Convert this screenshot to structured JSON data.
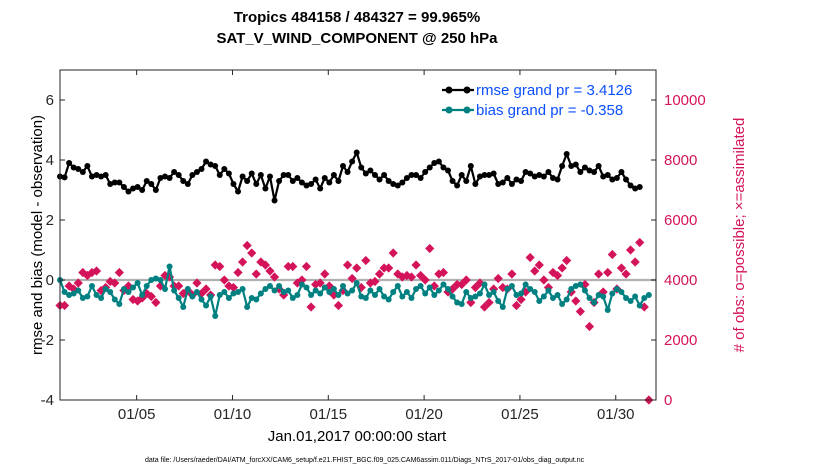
{
  "chart_data": {
    "type": "line",
    "title": "Tropics 484158 / 484327 = 99.965%",
    "subtitle": "SAT_V_WIND_COMPONENT @ 250 hPa",
    "xlabel": "Jan.01,2017 00:00:00 start",
    "ylabel_left": "rmse and bias (model - observation)",
    "ylabel_right": "# of obs: o=possible; ×=assimilated",
    "footer": "data file: /Users/raeder/DAI/ATM_forcXX/CAM6_setup/f.e21.FHIST_BGC.f09_025.CAM6assim.011/Diags_NTrS_2017-01/obs_diag_output.nc",
    "xlim": [
      1,
      32.1
    ],
    "ylim_left": [
      -4,
      7
    ],
    "ylim_right": [
      0,
      11000
    ],
    "x_ticks": [
      5,
      10,
      15,
      20,
      25,
      30
    ],
    "x_tick_labels": [
      "01/05",
      "01/10",
      "01/15",
      "01/20",
      "01/25",
      "01/30"
    ],
    "y_left_ticks": [
      -4,
      -2,
      0,
      2,
      4,
      6
    ],
    "y_left_tick_labels": [
      "-4",
      "-2",
      "0",
      "2",
      "4",
      "6"
    ],
    "y_right_ticks": [
      0,
      2000,
      4000,
      6000,
      8000,
      10000
    ],
    "y_right_tick_labels": [
      "0",
      "2000",
      "4000",
      "6000",
      "8000",
      "10000"
    ],
    "zero_line": 0,
    "colors": {
      "rmse": "#000000",
      "bias": "#008080",
      "obs": "#d4145a",
      "zero": "#b0b0b0",
      "legend_text": "#0b4fff"
    },
    "rmse_values": [
      3.45,
      3.42,
      3.9,
      3.75,
      3.7,
      3.6,
      3.8,
      3.45,
      3.5,
      3.45,
      3.5,
      3.2,
      3.25,
      3.25,
      3.1,
      2.95,
      3.05,
      3.1,
      3.0,
      3.3,
      3.2,
      3.0,
      3.4,
      3.45,
      3.4,
      3.6,
      3.5,
      3.3,
      3.2,
      3.5,
      3.6,
      3.7,
      3.95,
      3.85,
      3.8,
      3.5,
      3.7,
      3.55,
      3.2,
      2.95,
      3.45,
      3.3,
      3.55,
      3.2,
      3.5,
      3.05,
      3.45,
      2.65,
      3.3,
      3.5,
      3.5,
      3.3,
      3.4,
      3.25,
      3.15,
      3.2,
      3.35,
      3.05,
      3.4,
      3.25,
      3.5,
      3.3,
      3.8,
      3.6,
      3.95,
      4.25,
      3.75,
      3.55,
      3.65,
      3.5,
      3.35,
      3.5,
      3.3,
      3.2,
      3.15,
      3.25,
      3.4,
      3.5,
      3.5,
      3.4,
      3.6,
      3.75,
      3.9,
      3.95,
      3.75,
      3.65,
      3.3,
      3.15,
      3.5,
      3.3,
      3.8,
      3.2,
      3.45,
      3.5,
      3.5,
      3.55,
      3.2,
      3.25,
      3.4,
      3.2,
      3.35,
      3.3,
      3.6,
      3.55,
      3.45,
      3.5,
      3.45,
      3.6,
      3.4,
      3.35,
      3.8,
      4.2,
      3.8,
      3.85,
      3.6,
      3.75,
      3.65,
      3.6,
      3.8,
      3.45,
      3.5,
      3.35,
      3.4,
      3.6,
      3.35,
      3.15,
      3.05,
      3.1
    ],
    "bias_values": [
      -0.0,
      -0.4,
      -0.5,
      -0.45,
      -0.35,
      -0.6,
      -0.55,
      -0.2,
      -0.5,
      -0.6,
      -0.3,
      -0.4,
      -0.65,
      -0.8,
      -0.3,
      -0.4,
      -0.25,
      -0.1,
      -0.5,
      -0.2,
      0.0,
      0.05,
      0.0,
      -0.3,
      0.45,
      -0.35,
      -0.6,
      -0.9,
      -0.3,
      -0.55,
      -0.4,
      -0.65,
      -0.85,
      -0.55,
      -1.2,
      -0.5,
      -0.4,
      -0.6,
      -0.45,
      -0.4,
      -0.3,
      -0.9,
      -0.6,
      -0.65,
      -0.45,
      -0.3,
      -0.2,
      -0.35,
      -0.2,
      -0.4,
      -0.35,
      -0.6,
      -0.5,
      -0.15,
      -0.25,
      -0.5,
      -0.35,
      -0.45,
      -0.25,
      -0.4,
      -0.3,
      -0.5,
      -0.2,
      -0.45,
      -0.35,
      -0.1,
      -0.55,
      -0.6,
      -0.35,
      -0.5,
      -0.3,
      -0.55,
      -0.65,
      -0.4,
      -0.2,
      -0.55,
      -0.4,
      -0.6,
      -0.3,
      -0.2,
      -0.45,
      -0.25,
      -0.5,
      -0.35,
      -0.15,
      -0.3,
      -0.55,
      -0.75,
      -0.8,
      -0.4,
      -0.6,
      -0.55,
      -0.45,
      -0.15,
      -0.5,
      -0.4,
      -0.7,
      -0.9,
      -0.3,
      -0.2,
      -0.5,
      -0.45,
      -0.15,
      -0.3,
      -0.4,
      -0.7,
      -0.55,
      -0.35,
      -0.6,
      -0.5,
      -0.8,
      -0.65,
      -0.3,
      -0.2,
      -0.15,
      -0.35,
      -0.6,
      -0.75,
      -0.5,
      -0.55,
      -1.0,
      -0.45,
      -0.3,
      -0.4,
      -0.6,
      -0.7,
      -0.55,
      -0.85,
      -0.6,
      -0.5
    ],
    "obs_assimilated": [
      3150,
      3150,
      3800,
      3700,
      3900,
      4250,
      4150,
      4250,
      4300,
      3650,
      3750,
      3950,
      3900,
      4250,
      3650,
      3800,
      3350,
      3300,
      3400,
      3550,
      3450,
      3250,
      3800,
      4150,
      4100,
      3800,
      3800,
      3550,
      3650,
      3500,
      3900,
      3550,
      3700,
      3500,
      4500,
      4450,
      4000,
      3800,
      3750,
      4250,
      4600,
      5150,
      4900,
      4200,
      4600,
      4500,
      4300,
      4100,
      3700,
      3500,
      4450,
      4450,
      3900,
      4000,
      4450,
      3100,
      3850,
      3900,
      4200,
      3800,
      3500,
      3150,
      3650,
      4500,
      4050,
      4400,
      3750,
      4650,
      3900,
      3950,
      4200,
      4400,
      4400,
      4900,
      4200,
      4100,
      4150,
      4100,
      4500,
      4150,
      4000,
      5050,
      3800,
      4200,
      4250,
      3600,
      3700,
      3850,
      3850,
      4000,
      3250,
      3750,
      3900,
      3100,
      3250,
      3700,
      4050,
      3750,
      3700,
      4200,
      3150,
      3350,
      3600,
      4750,
      4300,
      4500,
      4000,
      3750,
      4250,
      4150,
      4400,
      4650,
      3600,
      3300,
      2950,
      3850,
      2450,
      3250,
      4200,
      3600,
      4250,
      4850,
      3700,
      4400,
      4200,
      5000,
      4600,
      5250,
      3100,
      0
    ]
  }
}
